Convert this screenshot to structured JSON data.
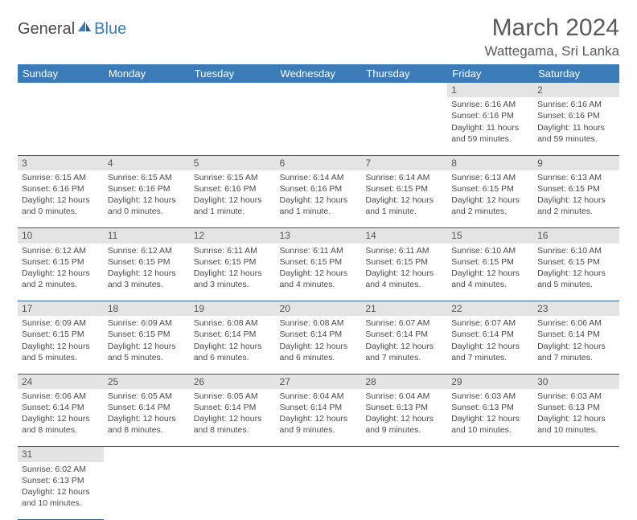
{
  "logo": {
    "general": "General",
    "blue": "Blue"
  },
  "title": "March 2024",
  "location": "Wattegama, Sri Lanka",
  "colors": {
    "header_bg": "#3b7bb8",
    "daynum_bg": "#e4e4e4",
    "row_border": "#2d5f8f"
  },
  "weekdays": [
    "Sunday",
    "Monday",
    "Tuesday",
    "Wednesday",
    "Thursday",
    "Friday",
    "Saturday"
  ],
  "weeks": [
    [
      null,
      null,
      null,
      null,
      null,
      {
        "d": "1",
        "r": "Sunrise: 6:16 AM",
        "s": "Sunset: 6:16 PM",
        "dl": "Daylight: 11 hours and 59 minutes."
      },
      {
        "d": "2",
        "r": "Sunrise: 6:16 AM",
        "s": "Sunset: 6:16 PM",
        "dl": "Daylight: 11 hours and 59 minutes."
      }
    ],
    [
      {
        "d": "3",
        "r": "Sunrise: 6:15 AM",
        "s": "Sunset: 6:16 PM",
        "dl": "Daylight: 12 hours and 0 minutes."
      },
      {
        "d": "4",
        "r": "Sunrise: 6:15 AM",
        "s": "Sunset: 6:16 PM",
        "dl": "Daylight: 12 hours and 0 minutes."
      },
      {
        "d": "5",
        "r": "Sunrise: 6:15 AM",
        "s": "Sunset: 6:16 PM",
        "dl": "Daylight: 12 hours and 1 minute."
      },
      {
        "d": "6",
        "r": "Sunrise: 6:14 AM",
        "s": "Sunset: 6:16 PM",
        "dl": "Daylight: 12 hours and 1 minute."
      },
      {
        "d": "7",
        "r": "Sunrise: 6:14 AM",
        "s": "Sunset: 6:15 PM",
        "dl": "Daylight: 12 hours and 1 minute."
      },
      {
        "d": "8",
        "r": "Sunrise: 6:13 AM",
        "s": "Sunset: 6:15 PM",
        "dl": "Daylight: 12 hours and 2 minutes."
      },
      {
        "d": "9",
        "r": "Sunrise: 6:13 AM",
        "s": "Sunset: 6:15 PM",
        "dl": "Daylight: 12 hours and 2 minutes."
      }
    ],
    [
      {
        "d": "10",
        "r": "Sunrise: 6:12 AM",
        "s": "Sunset: 6:15 PM",
        "dl": "Daylight: 12 hours and 2 minutes."
      },
      {
        "d": "11",
        "r": "Sunrise: 6:12 AM",
        "s": "Sunset: 6:15 PM",
        "dl": "Daylight: 12 hours and 3 minutes."
      },
      {
        "d": "12",
        "r": "Sunrise: 6:11 AM",
        "s": "Sunset: 6:15 PM",
        "dl": "Daylight: 12 hours and 3 minutes."
      },
      {
        "d": "13",
        "r": "Sunrise: 6:11 AM",
        "s": "Sunset: 6:15 PM",
        "dl": "Daylight: 12 hours and 4 minutes."
      },
      {
        "d": "14",
        "r": "Sunrise: 6:11 AM",
        "s": "Sunset: 6:15 PM",
        "dl": "Daylight: 12 hours and 4 minutes."
      },
      {
        "d": "15",
        "r": "Sunrise: 6:10 AM",
        "s": "Sunset: 6:15 PM",
        "dl": "Daylight: 12 hours and 4 minutes."
      },
      {
        "d": "16",
        "r": "Sunrise: 6:10 AM",
        "s": "Sunset: 6:15 PM",
        "dl": "Daylight: 12 hours and 5 minutes."
      }
    ],
    [
      {
        "d": "17",
        "r": "Sunrise: 6:09 AM",
        "s": "Sunset: 6:15 PM",
        "dl": "Daylight: 12 hours and 5 minutes."
      },
      {
        "d": "18",
        "r": "Sunrise: 6:09 AM",
        "s": "Sunset: 6:15 PM",
        "dl": "Daylight: 12 hours and 5 minutes."
      },
      {
        "d": "19",
        "r": "Sunrise: 6:08 AM",
        "s": "Sunset: 6:14 PM",
        "dl": "Daylight: 12 hours and 6 minutes."
      },
      {
        "d": "20",
        "r": "Sunrise: 6:08 AM",
        "s": "Sunset: 6:14 PM",
        "dl": "Daylight: 12 hours and 6 minutes."
      },
      {
        "d": "21",
        "r": "Sunrise: 6:07 AM",
        "s": "Sunset: 6:14 PM",
        "dl": "Daylight: 12 hours and 7 minutes."
      },
      {
        "d": "22",
        "r": "Sunrise: 6:07 AM",
        "s": "Sunset: 6:14 PM",
        "dl": "Daylight: 12 hours and 7 minutes."
      },
      {
        "d": "23",
        "r": "Sunrise: 6:06 AM",
        "s": "Sunset: 6:14 PM",
        "dl": "Daylight: 12 hours and 7 minutes."
      }
    ],
    [
      {
        "d": "24",
        "r": "Sunrise: 6:06 AM",
        "s": "Sunset: 6:14 PM",
        "dl": "Daylight: 12 hours and 8 minutes."
      },
      {
        "d": "25",
        "r": "Sunrise: 6:05 AM",
        "s": "Sunset: 6:14 PM",
        "dl": "Daylight: 12 hours and 8 minutes."
      },
      {
        "d": "26",
        "r": "Sunrise: 6:05 AM",
        "s": "Sunset: 6:14 PM",
        "dl": "Daylight: 12 hours and 8 minutes."
      },
      {
        "d": "27",
        "r": "Sunrise: 6:04 AM",
        "s": "Sunset: 6:14 PM",
        "dl": "Daylight: 12 hours and 9 minutes."
      },
      {
        "d": "28",
        "r": "Sunrise: 6:04 AM",
        "s": "Sunset: 6:13 PM",
        "dl": "Daylight: 12 hours and 9 minutes."
      },
      {
        "d": "29",
        "r": "Sunrise: 6:03 AM",
        "s": "Sunset: 6:13 PM",
        "dl": "Daylight: 12 hours and 10 minutes."
      },
      {
        "d": "30",
        "r": "Sunrise: 6:03 AM",
        "s": "Sunset: 6:13 PM",
        "dl": "Daylight: 12 hours and 10 minutes."
      }
    ],
    [
      {
        "d": "31",
        "r": "Sunrise: 6:02 AM",
        "s": "Sunset: 6:13 PM",
        "dl": "Daylight: 12 hours and 10 minutes."
      },
      null,
      null,
      null,
      null,
      null,
      null
    ]
  ]
}
